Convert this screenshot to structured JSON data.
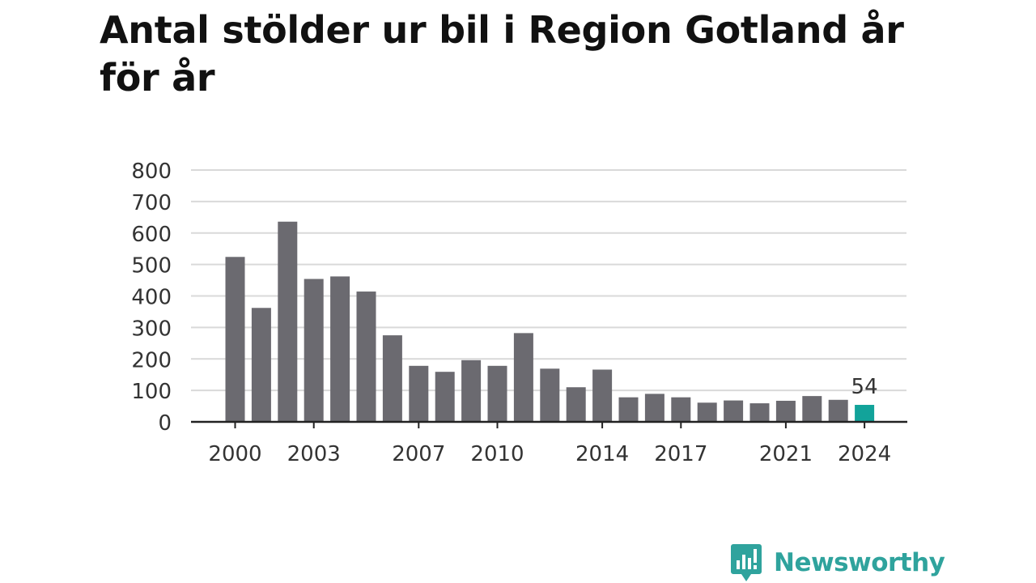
{
  "chart_data": {
    "type": "bar",
    "title": "Antal stölder ur bil i Region Gotland år för år",
    "xlabel": "",
    "ylabel": "",
    "ylim": [
      0,
      800
    ],
    "yticks": [
      0,
      100,
      200,
      300,
      400,
      500,
      600,
      700,
      800
    ],
    "x_tick_labels": [
      "2000",
      "2003",
      "2007",
      "2010",
      "2014",
      "2017",
      "2021",
      "2024"
    ],
    "categories": [
      2000,
      2001,
      2002,
      2003,
      2004,
      2005,
      2006,
      2007,
      2008,
      2009,
      2010,
      2011,
      2012,
      2013,
      2014,
      2015,
      2016,
      2017,
      2018,
      2019,
      2020,
      2021,
      2022,
      2023,
      2024
    ],
    "values": [
      524,
      362,
      636,
      454,
      462,
      414,
      275,
      178,
      159,
      196,
      178,
      282,
      169,
      110,
      166,
      78,
      89,
      78,
      61,
      68,
      59,
      67,
      82,
      70,
      54
    ],
    "highlight": {
      "category": 2024,
      "label": "54",
      "color": "#12a39a"
    },
    "bar_color": "#6b6a70",
    "grid": true,
    "grid_color": "#d9d9d9",
    "axis_color": "#222222"
  },
  "brand": {
    "name": "Newsworthy",
    "color": "#2fa39d"
  }
}
